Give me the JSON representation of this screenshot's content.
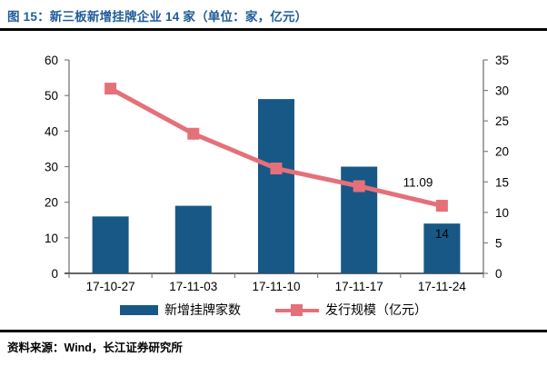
{
  "title": "图 15：新三板新增挂牌企业 14 家（单位：家，亿元）",
  "footer": "资料来源：Wind，长江证券研究所",
  "colors": {
    "title_blue": "#1F5C99",
    "bar_blue": "#175887",
    "line_pink": "#E5707A",
    "axis_gray": "#808080",
    "axis_dark": "#333333",
    "label_black": "#000000",
    "rule_black": "#000000"
  },
  "chart_data": {
    "type": "bar",
    "subtype": "bar+line combo",
    "categories": [
      "17-10-27",
      "17-11-03",
      "17-11-10",
      "17-11-17",
      "17-11-24"
    ],
    "series": [
      {
        "name": "新增挂牌家数",
        "type": "bar",
        "axis": "left",
        "values": [
          16,
          19,
          49,
          30,
          14
        ]
      },
      {
        "name": "发行规模（亿元）",
        "type": "line",
        "axis": "right",
        "values": [
          30.3,
          22.9,
          17.2,
          14.3,
          11.09
        ]
      }
    ],
    "left_axis": {
      "min": 0,
      "max": 60,
      "ticks": [
        0,
        10,
        20,
        30,
        40,
        50,
        60
      ]
    },
    "right_axis": {
      "min": 0,
      "max": 35,
      "ticks": [
        0,
        5,
        10,
        15,
        20,
        25,
        30,
        35
      ]
    },
    "annotations": [
      {
        "text": "11.09",
        "target": "line point 17-11-24"
      },
      {
        "text": "14",
        "target": "bar 17-11-24"
      }
    ],
    "legend_position": "bottom",
    "grid": false
  }
}
